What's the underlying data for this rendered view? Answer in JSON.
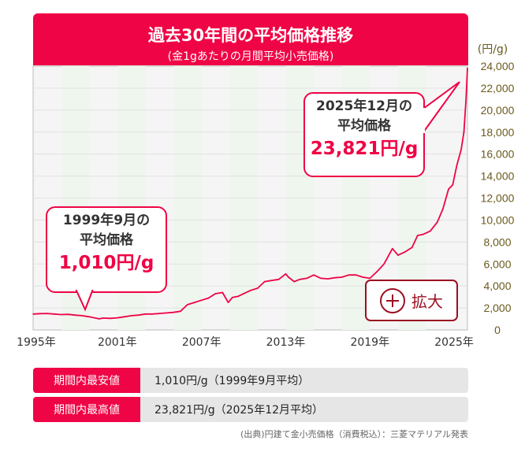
{
  "header": {
    "title": "過去30年間の平均価格推移",
    "subtitle": "(金1gあたりの月間平均小売価格)"
  },
  "chart_data": {
    "type": "line",
    "title": "過去30年間の平均価格推移",
    "subtitle": "(金1gあたりの月間平均小売価格)",
    "yunit": "(円/g)",
    "ylim": [
      0,
      24000
    ],
    "yticks": [
      "24,000",
      "22,000",
      "20,000",
      "18,000",
      "16,000",
      "14,000",
      "12,000",
      "10,000",
      "8,000",
      "6,000",
      "4,000",
      "2,000",
      "0"
    ],
    "xlim": [
      1995,
      2025.95
    ],
    "xticks": [
      "1995年",
      "2001年",
      "2007年",
      "2013年",
      "2019年",
      "2025年"
    ],
    "grid": true,
    "color": "#ef0445",
    "x": [
      1995,
      1995.5,
      1996,
      1996.5,
      1997,
      1997.5,
      1998,
      1998.5,
      1999,
      1999.7,
      2000,
      2000.5,
      2001,
      2001.5,
      2002,
      2002.5,
      2003,
      2003.5,
      2004,
      2004.5,
      2005,
      2005.5,
      2006,
      2006.5,
      2007,
      2007.5,
      2008,
      2008.5,
      2008.9,
      2009.2,
      2009.6,
      2010,
      2010.5,
      2011,
      2011.5,
      2012,
      2012.5,
      2013,
      2013.2,
      2013.6,
      2014,
      2014.5,
      2015,
      2015.5,
      2016,
      2016.5,
      2017,
      2017.5,
      2018,
      2018.5,
      2019,
      2019.5,
      2020,
      2020.6,
      2021,
      2021.5,
      2022,
      2022.4,
      2022.8,
      2023.3,
      2023.8,
      2024.2,
      2024.6,
      2024.9,
      2025.2,
      2025.5,
      2025.7,
      2025.85,
      2025.95
    ],
    "y": [
      1450,
      1480,
      1500,
      1450,
      1400,
      1420,
      1350,
      1300,
      1200,
      1010,
      1080,
      1050,
      1100,
      1200,
      1300,
      1350,
      1450,
      1450,
      1500,
      1550,
      1600,
      1700,
      2300,
      2500,
      2700,
      2900,
      3300,
      3400,
      2500,
      2950,
      3050,
      3300,
      3600,
      3800,
      4400,
      4500,
      4600,
      5100,
      4800,
      4400,
      4600,
      4700,
      5000,
      4700,
      4650,
      4750,
      4800,
      5000,
      5000,
      4800,
      4700,
      5300,
      6000,
      7400,
      6800,
      7100,
      7500,
      8600,
      8700,
      9000,
      9800,
      11000,
      12800,
      13200,
      15000,
      16400,
      18000,
      21000,
      23821
    ]
  },
  "callouts": [
    {
      "line1": "1999年9月の",
      "line2": "平均価格",
      "value": "1,010円/g"
    },
    {
      "line1": "2025年12月の",
      "line2": "平均価格",
      "value": "23,821円/g"
    }
  ],
  "zoom_button": {
    "label": "拡大",
    "icon": "plus-circle-icon"
  },
  "summary": [
    {
      "label": "期間内最安値",
      "value": "1,010円/g（1999年9月平均）"
    },
    {
      "label": "期間内最高値",
      "value": "23,821円/g（2025年12月平均）"
    }
  ],
  "source": "(出典)円建て金小売価格（消費税込）：三菱マテリアル発表"
}
